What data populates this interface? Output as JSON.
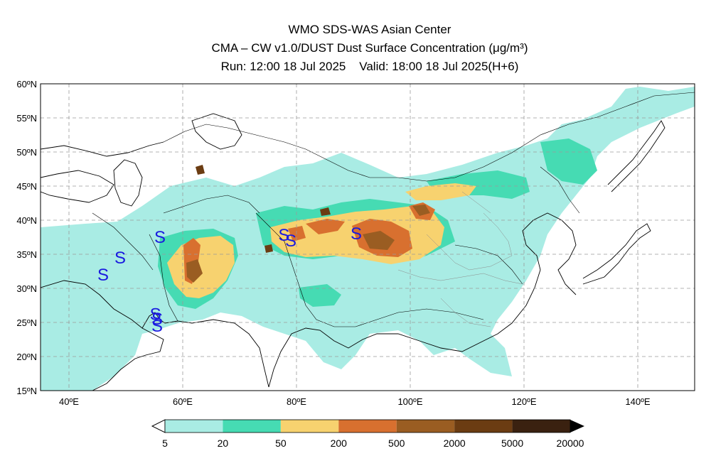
{
  "header": {
    "line1": "WMO SDS-WAS Asian Center",
    "line2": "CMA – CW v1.0/DUST Dust Surface Concentration (μg/m³)",
    "line3": "Run: 12:00 18 Jul 2025    Valid: 18:00 18 Jul 2025(H+6)"
  },
  "map": {
    "lat_labels": [
      "60ºN",
      "55ºN",
      "50ºN",
      "45ºN",
      "40ºN",
      "35ºN",
      "30ºN",
      "25ºN",
      "20ºN",
      "15ºN"
    ],
    "lon_labels": [
      "40ºE",
      "60ºE",
      "80ºE",
      "100ºE",
      "120ºE",
      "140ºE"
    ],
    "marker_symbol": "S",
    "marker_color": "#1a1adf"
  },
  "colorbar": {
    "ticks": [
      "5",
      "20",
      "50",
      "200",
      "500",
      "2000",
      "5000",
      "20000"
    ],
    "colors": [
      "#a9ece4",
      "#46dbb3",
      "#f7d26f",
      "#d8702f",
      "#9a5d22",
      "#6b3c12",
      "#3a2110"
    ]
  },
  "colors": {
    "level1": "#a9ece4",
    "level2": "#46dbb3",
    "level3": "#f7d26f",
    "level4": "#d8702f",
    "level5": "#9a5d22",
    "level6": "#6b3c12"
  }
}
